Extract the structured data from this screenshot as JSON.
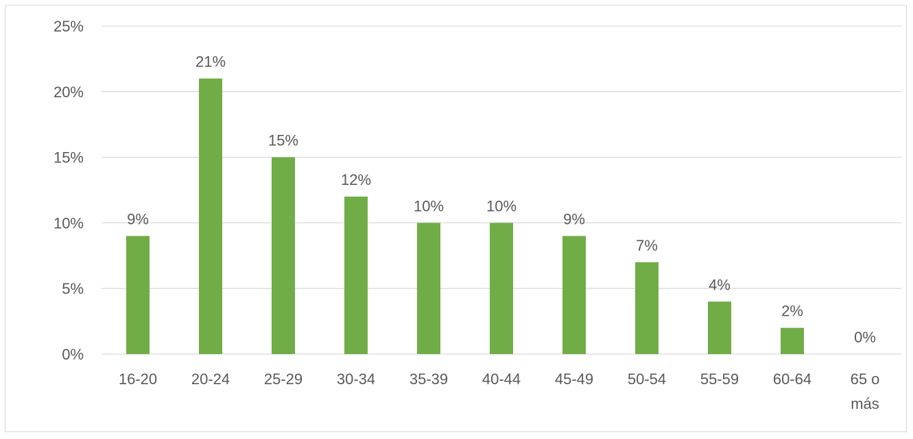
{
  "chart_data": {
    "type": "bar",
    "categories": [
      "16-20",
      "20-24",
      "25-29",
      "30-34",
      "35-39",
      "40-44",
      "45-49",
      "50-54",
      "55-59",
      "60-64",
      "65 o más"
    ],
    "values": [
      9,
      21,
      15,
      12,
      10,
      10,
      9,
      7,
      4,
      2,
      0
    ],
    "data_labels": [
      "9%",
      "21%",
      "15%",
      "12%",
      "10%",
      "10%",
      "9%",
      "7%",
      "4%",
      "2%",
      "0%"
    ],
    "y_ticks": [
      0,
      5,
      10,
      15,
      20,
      25
    ],
    "y_tick_labels": [
      "0%",
      "5%",
      "10%",
      "15%",
      "20%",
      "25%"
    ],
    "ylim": [
      0,
      25
    ],
    "unit": "%",
    "title": "",
    "xlabel": "",
    "ylabel": "",
    "grid": true,
    "legend": "none",
    "bar_color": "#70ad47",
    "grid_color": "#d9d9d9",
    "text_color": "#595959"
  }
}
